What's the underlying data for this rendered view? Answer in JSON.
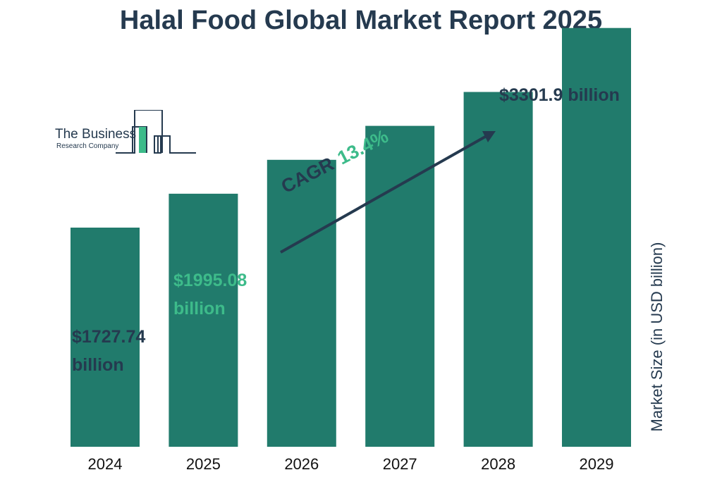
{
  "chart_data": {
    "type": "bar",
    "title": "Halal Food Global Market Report 2025",
    "categories": [
      "2024",
      "2025",
      "2026",
      "2027",
      "2028",
      "2029"
    ],
    "values": [
      1727.74,
      1995.08,
      2262,
      2530,
      2797,
      3301.9
    ],
    "ylabel": "Market Size (in USD billion)",
    "xlabel": "",
    "ylim": [
      0,
      3400
    ],
    "grid": false,
    "bar_color": "#217b6c",
    "labels": {
      "first": {
        "amount": "$1727.74",
        "unit": "billion"
      },
      "second": {
        "amount": "$1995.08",
        "unit": "billion"
      },
      "last": "$3301.9 billion"
    },
    "annotation": {
      "word": "CAGR",
      "value": "13.4%"
    }
  },
  "logo": {
    "line1": "The Business",
    "line2": "Research Company"
  },
  "colors": {
    "dark": "#253a4f",
    "accent": "#3dbb8a",
    "bar": "#217b6c"
  }
}
